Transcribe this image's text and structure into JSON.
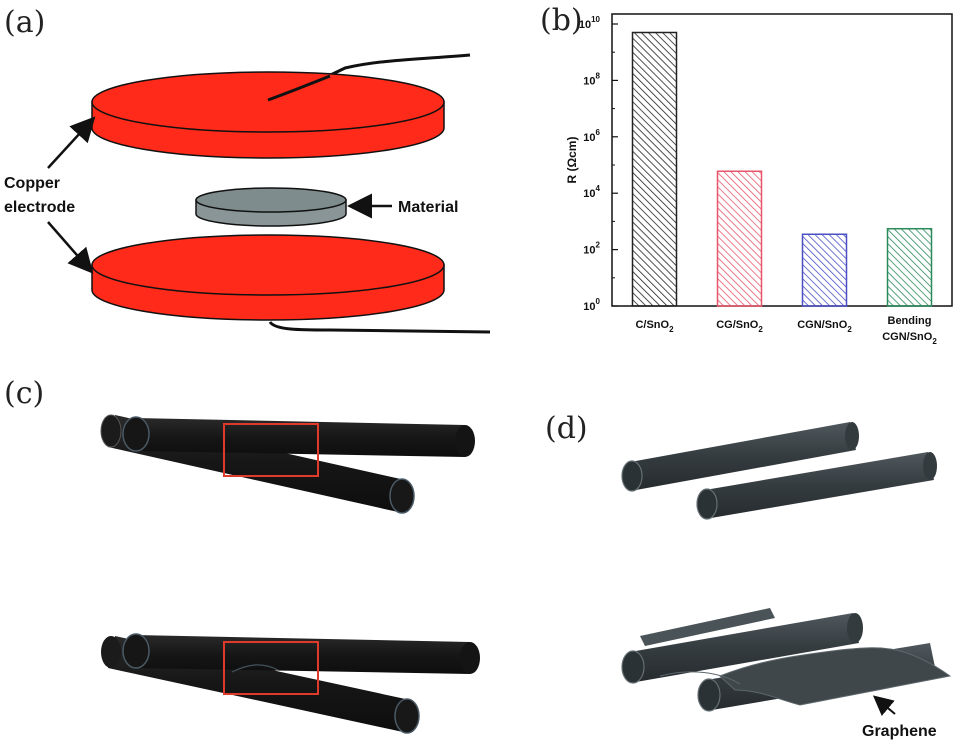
{
  "panels": {
    "a": {
      "label": "(a)",
      "electrode_label_line1": "Copper",
      "electrode_label_line2": "electrode",
      "material_label": "Material"
    },
    "b": {
      "label": "(b)"
    },
    "c": {
      "label": "(c)"
    },
    "d": {
      "label": "(d)",
      "graphene_label": "Graphene"
    }
  },
  "colors": {
    "copper": "#ff2a1a",
    "material": "#7f8c8d",
    "tube": "#1b1b1b",
    "tube_d": "#3a4145",
    "highlight": "#e03a2a"
  },
  "chart_data": {
    "type": "bar",
    "ylabel": "R (Ωcm)",
    "yscale": "log",
    "ylim": [
      1,
      10000000000
    ],
    "y_ticks": [
      {
        "value": 1,
        "base": "10",
        "exp": "0"
      },
      {
        "value": 100,
        "base": "10",
        "exp": "2"
      },
      {
        "value": 10000,
        "base": "10",
        "exp": "4"
      },
      {
        "value": 1000000,
        "base": "10",
        "exp": "6"
      },
      {
        "value": 100000000,
        "base": "10",
        "exp": "8"
      },
      {
        "value": 10000000000,
        "base": "10",
        "exp": "10"
      }
    ],
    "categories": [
      {
        "line1": "C/SnO",
        "sub": "2",
        "line0": ""
      },
      {
        "line1": "CG/SnO",
        "sub": "2",
        "line0": ""
      },
      {
        "line1": "CGN/SnO",
        "sub": "2",
        "line0": ""
      },
      {
        "line1": "CGN/SnO",
        "sub": "2",
        "line0": "Bending"
      }
    ],
    "values": [
      5000000000,
      60000,
      350,
      550
    ],
    "bar_colors": [
      "#222222",
      "#e8556a",
      "#4a4fc4",
      "#2a8a5a"
    ],
    "hatch": "diagonal",
    "grid": false
  }
}
